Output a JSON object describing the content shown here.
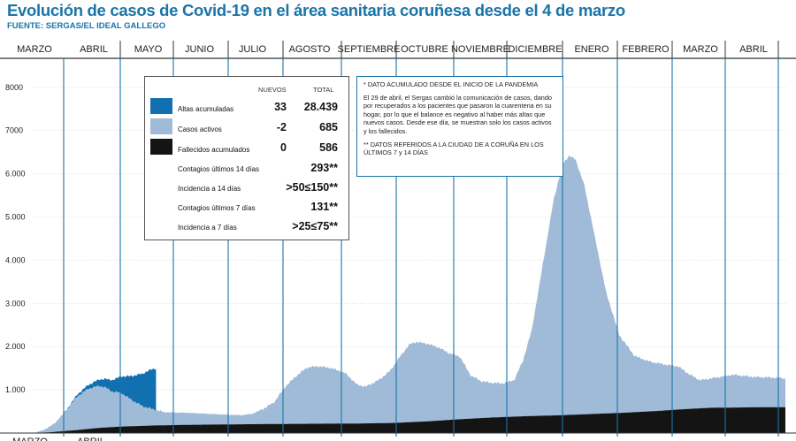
{
  "title": "Evolución de casos de Covid-19 en el área sanitaria coruñesa desde el 4 de marzo",
  "source": "FUENTE: SERGAS/EL IDEAL GALLEGO",
  "colors": {
    "altas": "#1170b0",
    "activos": "#9fbbd8",
    "fallecidos": "#141414",
    "accent": "#1a74a8"
  },
  "chart_data": {
    "type": "area",
    "months": [
      "MARZO",
      "ABRIL",
      "MAYO",
      "JUNIO",
      "JULIO",
      "AGOSTO",
      "SEPTIEMBRE",
      "OCTUBRE",
      "NOVIEMBRE",
      "DICIEMBRE",
      "ENERO",
      "FEBRERO",
      "MARZO",
      "ABRIL"
    ],
    "bottom_month_labels": [
      "MARZO",
      "ABRIL"
    ],
    "y_ticks": [
      "8000",
      "7000",
      "6.000",
      "5.000",
      "4.000",
      "3.000",
      "2.000",
      "1.000"
    ],
    "ylim": [
      0,
      8400
    ],
    "stacking": "activos and altas stacked on top of fallecidos",
    "series": [
      {
        "name": "Fallecidos acumulados",
        "color": "#141414",
        "points": [
          [
            0,
            0
          ],
          [
            8,
            20
          ],
          [
            20,
            70
          ],
          [
            30,
            120
          ],
          [
            40,
            150
          ],
          [
            55,
            175
          ],
          [
            70,
            190
          ],
          [
            90,
            200
          ],
          [
            110,
            210
          ],
          [
            130,
            215
          ],
          [
            150,
            222
          ],
          [
            165,
            235
          ],
          [
            180,
            270
          ],
          [
            195,
            320
          ],
          [
            210,
            360
          ],
          [
            225,
            390
          ],
          [
            240,
            410
          ],
          [
            255,
            440
          ],
          [
            270,
            470
          ],
          [
            285,
            510
          ],
          [
            300,
            560
          ],
          [
            310,
            585
          ],
          [
            320,
            590
          ],
          [
            335,
            600
          ],
          [
            344,
            600
          ]
        ]
      },
      {
        "name": "Casos activos",
        "color": "#9fbbd8",
        "points": [
          [
            0,
            0
          ],
          [
            5,
            60
          ],
          [
            10,
            200
          ],
          [
            15,
            470
          ],
          [
            20,
            780
          ],
          [
            25,
            930
          ],
          [
            30,
            970
          ],
          [
            33,
            920
          ],
          [
            36,
            820
          ],
          [
            40,
            780
          ],
          [
            45,
            600
          ],
          [
            50,
            450
          ],
          [
            55,
            370
          ],
          [
            60,
            300
          ],
          [
            70,
            280
          ],
          [
            80,
            250
          ],
          [
            90,
            220
          ],
          [
            95,
            210
          ],
          [
            100,
            240
          ],
          [
            105,
            350
          ],
          [
            110,
            500
          ],
          [
            115,
            850
          ],
          [
            120,
            1100
          ],
          [
            125,
            1300
          ],
          [
            130,
            1330
          ],
          [
            135,
            1300
          ],
          [
            140,
            1220
          ],
          [
            143,
            1150
          ],
          [
            148,
            900
          ],
          [
            152,
            850
          ],
          [
            158,
            1000
          ],
          [
            163,
            1200
          ],
          [
            168,
            1550
          ],
          [
            172,
            1800
          ],
          [
            175,
            1850
          ],
          [
            180,
            1800
          ],
          [
            185,
            1700
          ],
          [
            190,
            1550
          ],
          [
            195,
            1450
          ],
          [
            200,
            1000
          ],
          [
            205,
            850
          ],
          [
            210,
            800
          ],
          [
            215,
            780
          ],
          [
            220,
            850
          ],
          [
            224,
            1300
          ],
          [
            228,
            2000
          ],
          [
            233,
            3500
          ],
          [
            238,
            5000
          ],
          [
            242,
            5800
          ],
          [
            245,
            6000
          ],
          [
            248,
            5900
          ],
          [
            252,
            5300
          ],
          [
            256,
            4300
          ],
          [
            262,
            2800
          ],
          [
            268,
            1800
          ],
          [
            275,
            1300
          ],
          [
            282,
            1150
          ],
          [
            290,
            1050
          ],
          [
            295,
            1000
          ],
          [
            300,
            800
          ],
          [
            305,
            650
          ],
          [
            310,
            680
          ],
          [
            320,
            760
          ],
          [
            330,
            700
          ],
          [
            340,
            680
          ],
          [
            344,
            660
          ]
        ]
      },
      {
        "name": "Altas acumuladas",
        "color": "#1170b0",
        "visible_until_day": 56,
        "points": [
          [
            0,
            0
          ],
          [
            14,
            10
          ],
          [
            18,
            30
          ],
          [
            22,
            60
          ],
          [
            26,
            100
          ],
          [
            30,
            150
          ],
          [
            34,
            220
          ],
          [
            38,
            320
          ],
          [
            42,
            450
          ],
          [
            46,
            600
          ],
          [
            50,
            760
          ],
          [
            53,
            880
          ],
          [
            56,
            970
          ]
        ]
      }
    ]
  },
  "legend": {
    "col_nuevos": "NUEVOS",
    "col_total": "TOTAL",
    "rows": [
      {
        "label": "Altas acumuladas",
        "nuevos": "33",
        "total": "28.439",
        "swatch": "#1170b0"
      },
      {
        "label": "Casos activos",
        "nuevos": "-2",
        "total": "685",
        "swatch": "#9fbbd8"
      },
      {
        "label": "Fallecidos acumulados",
        "nuevos": "0",
        "total": "586",
        "swatch": "#141414"
      }
    ],
    "stats": [
      {
        "label": "Contagios últimos 14 días",
        "value": "293**"
      },
      {
        "label": "Incidencia a 14 días",
        "value": ">50≤150**"
      },
      {
        "label": "Contagios últimos 7 días",
        "value": "131**"
      },
      {
        "label": "Incidencia a 7 días",
        "value": ">25≤75**"
      }
    ]
  },
  "notes": {
    "note1": "* DATO ACUMULADO DESDE EL INICIO DE LA PANDEMIA",
    "note2": "El 29 de abril, el Sergas cambió la comunicación de casos, dando por recuperados a los pacientes que pasaron la cuarentena en su hogar, por lo que el balance es negativo al haber más altas que nuevos casos. Desde ese día, se muestran solo los casos activos y los fallecidos.",
    "note3": "** DATOS REFERIDOS A LA CIUDAD DE A CORUÑA EN LOS ÚLTIMOS 7 y 14 DÍAS"
  }
}
